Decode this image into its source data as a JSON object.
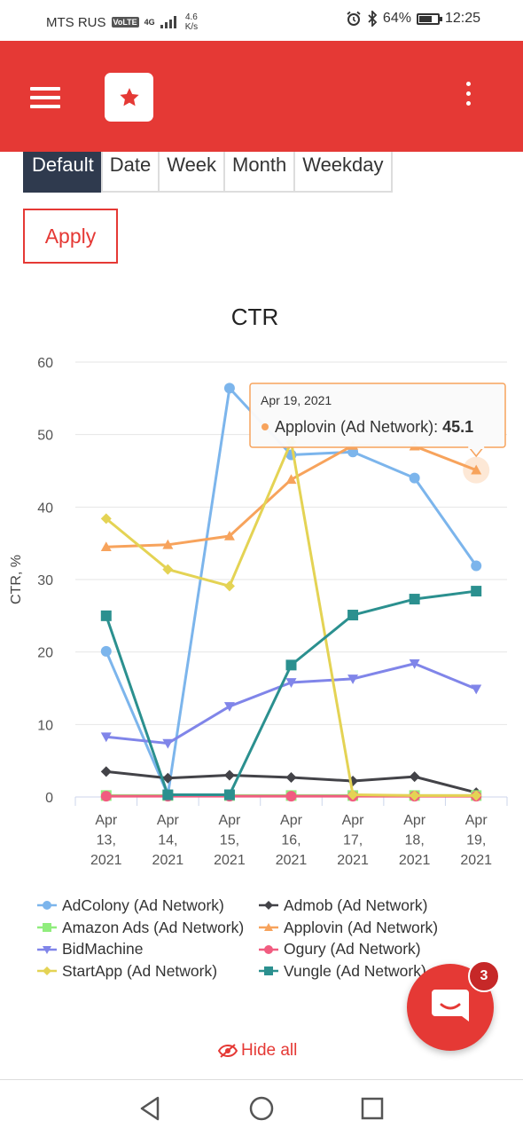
{
  "status_bar": {
    "carrier": "MTS RUS",
    "volte": "VoLTE",
    "network": "4G",
    "net_speed_value": "4.6",
    "net_speed_unit": "K/s",
    "battery": "64%",
    "battery_level": 0.64,
    "time": "12:25"
  },
  "app_bar": {
    "menu_icon": "hamburger-icon",
    "logo_icon": "star-icon",
    "overflow_icon": "more-vert-icon"
  },
  "tabs": [
    {
      "label": "Default",
      "active": true
    },
    {
      "label": "Date",
      "active": false
    },
    {
      "label": "Week",
      "active": false
    },
    {
      "label": "Month",
      "active": false
    },
    {
      "label": "Weekday",
      "active": false
    }
  ],
  "apply_label": "Apply",
  "chart_data": {
    "type": "line",
    "title": "CTR",
    "xlabel": "",
    "ylabel": "CTR, %",
    "ylim": [
      0,
      60
    ],
    "yticks": [
      0,
      10,
      20,
      30,
      40,
      50,
      60
    ],
    "grid": true,
    "legend": "bottom",
    "categories": [
      "Apr 13, 2021",
      "Apr 14, 2021",
      "Apr 15, 2021",
      "Apr 16, 2021",
      "Apr 17, 2021",
      "Apr 18, 2021",
      "Apr 19, 2021"
    ],
    "series": [
      {
        "name": "AdColony (Ad Network)",
        "color": "#7cb5ec",
        "marker": "circle",
        "values": [
          20.1,
          0.3,
          56.4,
          47.2,
          47.6,
          44.0,
          31.9
        ]
      },
      {
        "name": "Admob (Ad Network)",
        "color": "#434348",
        "marker": "diamond",
        "values": [
          3.5,
          2.6,
          3.0,
          2.7,
          2.2,
          2.8,
          0.6
        ]
      },
      {
        "name": "Amazon Ads (Ad Network)",
        "color": "#90ed7d",
        "marker": "square",
        "values": [
          0.2,
          0.2,
          0.2,
          0.2,
          0.2,
          0.2,
          0.2
        ]
      },
      {
        "name": "Applovin (Ad Network)",
        "color": "#f7a35c",
        "marker": "triangle",
        "values": [
          34.5,
          34.8,
          36.0,
          43.8,
          48.5,
          48.4,
          45.1
        ]
      },
      {
        "name": "BidMachine",
        "color": "#8085e9",
        "marker": "triangle-down",
        "values": [
          8.3,
          7.4,
          12.5,
          15.8,
          16.3,
          18.4,
          14.9
        ]
      },
      {
        "name": "Ogury (Ad Network)",
        "color": "#f15c80",
        "marker": "circle",
        "values": [
          0.1,
          0.1,
          0.1,
          0.1,
          0.1,
          0.1,
          0.1
        ]
      },
      {
        "name": "StartApp (Ad Network)",
        "color": "#e4d354",
        "marker": "diamond",
        "values": [
          38.4,
          31.4,
          29.1,
          49.0,
          0.3,
          0.2,
          0.2
        ]
      },
      {
        "name": "Vungle (Ad Network)",
        "color": "#2b908f",
        "marker": "square",
        "values": [
          25.0,
          0.3,
          0.3,
          18.2,
          25.1,
          27.3,
          28.4
        ]
      }
    ],
    "tooltip": {
      "date": "Apr 19, 2021",
      "series": "Applovin (Ad Network)",
      "label": "Applovin (Ad Network): ",
      "value": "45.1",
      "index": 6
    }
  },
  "hide_all_label": "Hide all",
  "hide_all_icon": "eye-off-icon",
  "chat": {
    "icon": "chat-icon",
    "badge": "3"
  },
  "nav": {
    "back_icon": "back-triangle-icon",
    "home_icon": "home-circle-icon",
    "recents_icon": "recents-square-icon"
  }
}
